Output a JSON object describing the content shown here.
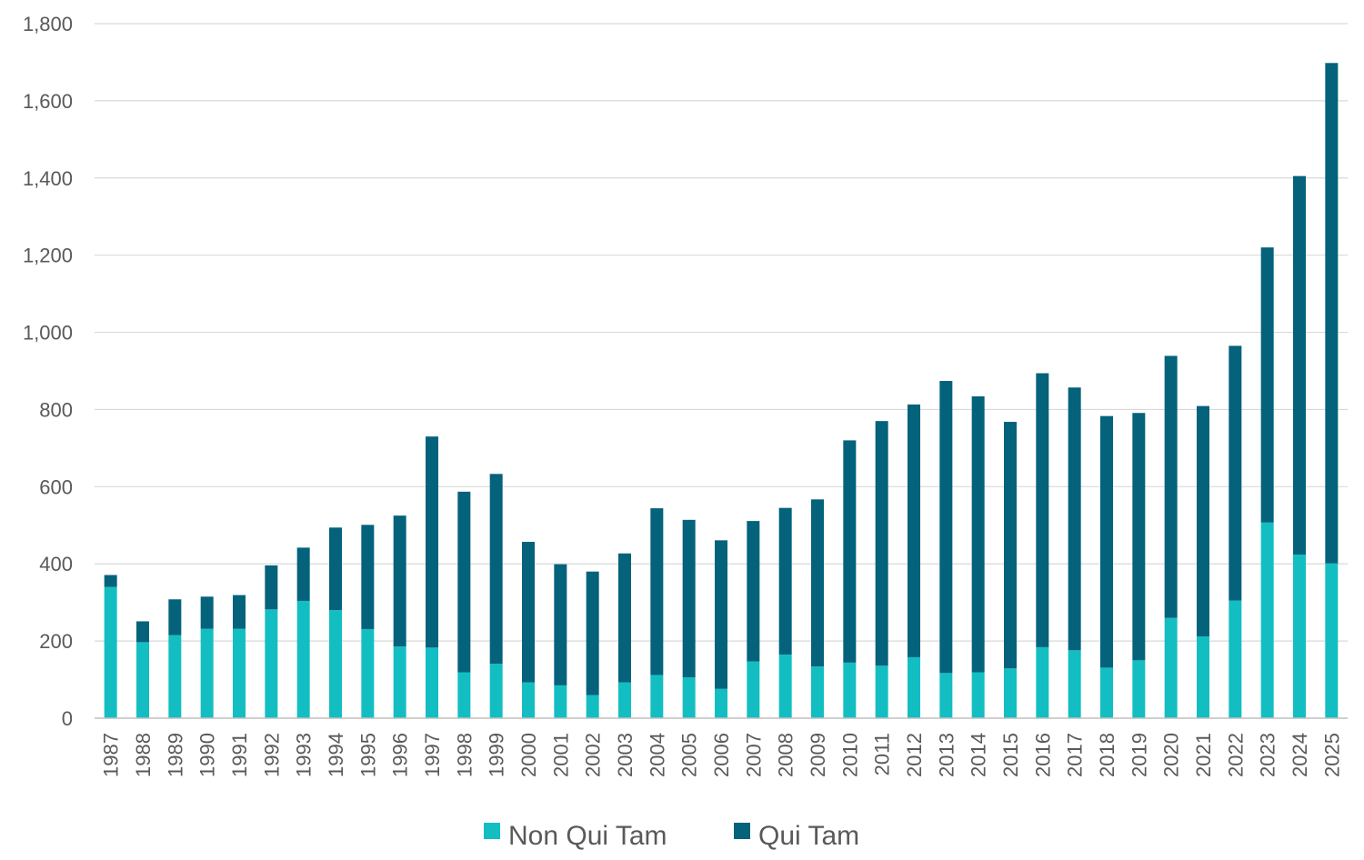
{
  "chart_data": {
    "type": "bar",
    "stacked": true,
    "title": "",
    "xlabel": "",
    "ylabel": "",
    "ylim": [
      0,
      1800
    ],
    "yticks": [
      0,
      200,
      400,
      600,
      800,
      1000,
      1200,
      1400,
      1600,
      1800
    ],
    "ytick_labels": [
      "0",
      "200",
      "400",
      "600",
      "800",
      "1,000",
      "1,200",
      "1,400",
      "1,600",
      "1,800"
    ],
    "grid": "horizontal",
    "legend_position": "bottom",
    "categories": [
      "1987",
      "1988",
      "1989",
      "1990",
      "1991",
      "1992",
      "1993",
      "1994",
      "1995",
      "1996",
      "1997",
      "1998",
      "1999",
      "2000",
      "2001",
      "2002",
      "2003",
      "2004",
      "2005",
      "2006",
      "2007",
      "2008",
      "2009",
      "2010",
      "2011",
      "2012",
      "2013",
      "2014",
      "2015",
      "2016",
      "2017",
      "2018",
      "2019",
      "2020",
      "2021",
      "2022",
      "2023",
      "2024",
      "2025"
    ],
    "series": [
      {
        "name": "Non Qui Tam",
        "color": "#13bec3",
        "values": [
          340,
          197,
          215,
          232,
          232,
          282,
          304,
          280,
          231,
          186,
          183,
          119,
          141,
          93,
          85,
          60,
          93,
          112,
          106,
          76,
          147,
          165,
          134,
          144,
          136,
          158,
          117,
          119,
          129,
          184,
          176,
          131,
          150,
          260,
          212,
          305,
          507,
          424,
          401
        ]
      },
      {
        "name": "Qui Tam",
        "color": "#04627b",
        "values": [
          31,
          54,
          93,
          83,
          87,
          114,
          138,
          214,
          270,
          339,
          547,
          468,
          492,
          364,
          314,
          320,
          334,
          432,
          408,
          385,
          364,
          380,
          433,
          576,
          634,
          655,
          757,
          715,
          639,
          710,
          681,
          652,
          641,
          679,
          597,
          660,
          713,
          981,
          1297
        ]
      }
    ]
  }
}
